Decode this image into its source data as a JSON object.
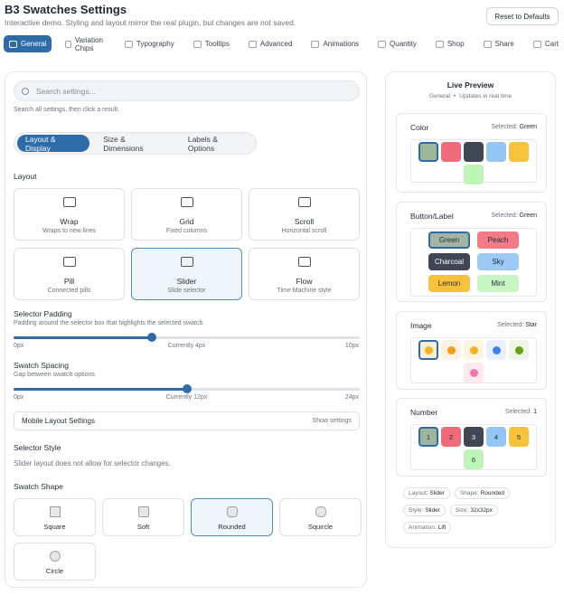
{
  "header": {
    "title": "B3 Swatches Settings",
    "subtitle": "Interactive demo. Styling and layout mirror the real plugin, but changes are not saved.",
    "reset_button": "Reset to Defaults"
  },
  "tabs": {
    "items": [
      "General",
      "Variation Chips",
      "Typography",
      "Tooltips",
      "Advanced",
      "Animations",
      "Quantity",
      "Shop",
      "Share",
      "Cart"
    ],
    "active": 0
  },
  "settings": {
    "search": {
      "placeholder": "Search settings...",
      "hint": "Search all settings, then click a result."
    },
    "subtabs": {
      "items": [
        "Layout & Display",
        "Size & Dimensions",
        "Labels & Options"
      ],
      "active": 0
    },
    "layout": {
      "label": "Layout",
      "options": [
        {
          "name": "Wrap",
          "description": "Wraps to new lines"
        },
        {
          "name": "Grid",
          "description": "Fixed columns"
        },
        {
          "name": "Scroll",
          "description": "Horizontal scroll"
        },
        {
          "name": "Pill",
          "description": "Connected pills"
        },
        {
          "name": "Slider",
          "description": "Slide selector"
        },
        {
          "name": "Flow",
          "description": "Time Machine style"
        }
      ],
      "selected": 4
    },
    "selector_padding": {
      "label": "Selector Padding",
      "description": "Padding around the selector box that highlights the selected swatch.",
      "min": 0,
      "max": 10,
      "value": 4,
      "min_label": "0px",
      "value_label": "Currently 4px",
      "max_label": "10px"
    },
    "swatch_spacing": {
      "label": "Swatch Spacing",
      "description": "Gap between swatch options",
      "min": 0,
      "max": 24,
      "value": 12,
      "min_label": "0px",
      "value_label": "Currently 12px",
      "max_label": "24px"
    },
    "mobile": {
      "label": "Mobile Layout Settings",
      "action": "Show settings"
    },
    "selector_style": {
      "label": "Selector Style",
      "note": "Slider layout does not allow for selector changes."
    },
    "swatch_shape": {
      "label": "Swatch Shape",
      "options": [
        "Square",
        "Soft",
        "Rounded",
        "Squircle",
        "Circle"
      ],
      "selected": 2
    }
  },
  "preview": {
    "title": "Live Preview",
    "context": "General",
    "separator": "•",
    "status": "Updates in real time",
    "color": {
      "title": "Color",
      "selected_label": "Selected:",
      "selected": "Green",
      "active": 0,
      "swatches": [
        {
          "color": "#9fb59a"
        },
        {
          "color": "#f06b7a"
        },
        {
          "color": "#3f4654"
        },
        {
          "color": "#93c5f5"
        },
        {
          "color": "#f8c13a"
        },
        {
          "color": "#bdf5b8"
        }
      ]
    },
    "button": {
      "title": "Button/Label",
      "selected_label": "Selected:",
      "selected": "Green",
      "active": 0,
      "swatches": [
        {
          "label": "Green",
          "color": "#a3b5a0",
          "text": "#1f2937"
        },
        {
          "label": "Peach",
          "color": "#f37b88",
          "text": "#1f2937"
        },
        {
          "label": "Charcoal",
          "color": "#3f4654",
          "text": "#ffffff"
        },
        {
          "label": "Sky",
          "color": "#9ccaf5",
          "text": "#1f2937"
        },
        {
          "label": "Lemon",
          "color": "#f8c13a",
          "text": "#1f2937"
        },
        {
          "label": "Mint",
          "color": "#c6f6c1",
          "text": "#1f2937"
        }
      ]
    },
    "image": {
      "title": "Image",
      "selected_label": "Selected:",
      "selected": "Star",
      "active": 0,
      "swatches": [
        {
          "color": "#f2b51c",
          "bg": "#f6edd3"
        },
        {
          "color": "#f59e0b",
          "bg": "#fbf1e4"
        },
        {
          "color": "#f5b324",
          "bg": "#fbf4e2"
        },
        {
          "color": "#3b82f6",
          "bg": "#e7f0fb"
        },
        {
          "color": "#65a30d",
          "bg": "#edf5e5"
        },
        {
          "color": "#f472b6",
          "bg": "#fde8ee"
        }
      ]
    },
    "number": {
      "title": "Number",
      "selected_label": "Selected:",
      "selected": 1,
      "active": 0,
      "swatches": [
        {
          "label": 1,
          "color": "#9fb59a",
          "text": "#1f2937"
        },
        {
          "label": 2,
          "color": "#f06b7a",
          "text": "#1f2937"
        },
        {
          "label": 3,
          "color": "#3f4654",
          "text": "#ffffff"
        },
        {
          "label": 4,
          "color": "#93c5f5",
          "text": "#1f2937"
        },
        {
          "label": 5,
          "color": "#f8c13a",
          "text": "#1f2937"
        },
        {
          "label": 6,
          "color": "#bdf5b8",
          "text": "#1f2937"
        }
      ]
    },
    "tags": [
      {
        "key": "Layout:",
        "value": "Slider"
      },
      {
        "key": "Shape:",
        "value": "Rounded"
      },
      {
        "key": "Style:",
        "value": "Slider"
      },
      {
        "key": "Size:",
        "value": "32x32px"
      },
      {
        "key": "Animation:",
        "value": "Lift"
      }
    ]
  }
}
